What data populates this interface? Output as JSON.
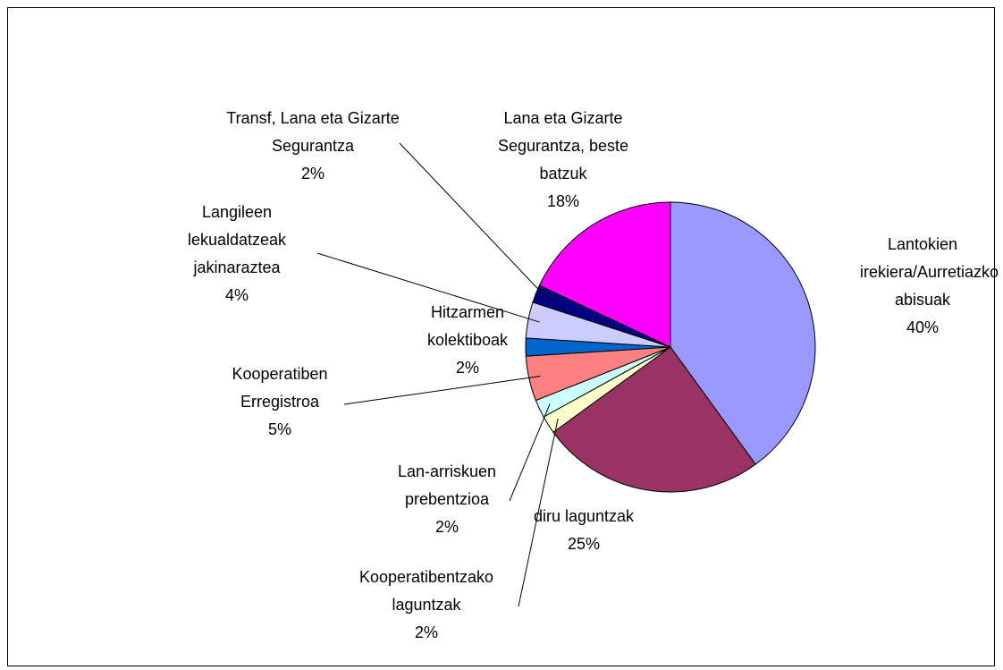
{
  "chart_data": {
    "type": "pie",
    "categories": [
      "Lantokien irekiera/Aurretiazko abisuak",
      "diru laguntzak",
      "Kooperatibentzako laguntzak",
      "Lan-arriskuen prebentzioa",
      "Kooperatiben Erregistroa",
      "Hitzarmen kolektiboak",
      "Langileen lekualdatzeak jakinaraztea",
      "Transf, Lana eta Gizarte Segurantza",
      "Lana eta Gizarte Segurantza, beste batzuk"
    ],
    "values": [
      40,
      25,
      2,
      2,
      5,
      2,
      4,
      2,
      18
    ],
    "value_labels": [
      "40%",
      "25%",
      "2%",
      "2%",
      "5%",
      "2%",
      "4%",
      "2%",
      "18%"
    ],
    "colors": [
      "#9999ff",
      "#993366",
      "#ffffcc",
      "#ccffff",
      "#ff8080",
      "#0066cc",
      "#ccccff",
      "#000080",
      "#ff00ff"
    ]
  }
}
